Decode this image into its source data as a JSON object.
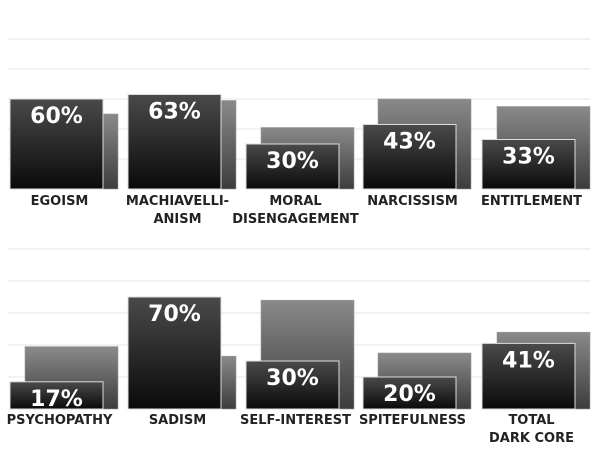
{
  "chart_data": [
    {
      "type": "bar",
      "categories": [
        [
          "EGOISM"
        ],
        [
          "MACHIAVELLI-",
          "ANISM"
        ],
        [
          "MORAL",
          "DISENGAGEMENT"
        ],
        [
          "NARCISSISM"
        ],
        [
          "ENTITLEMENT"
        ]
      ],
      "series": [
        {
          "values": [
            60,
            63,
            30,
            43,
            33
          ],
          "labels": [
            "60%",
            "63%",
            "30%",
            "43%",
            "33%"
          ],
          "color": "#1c1c1c"
        },
        {
          "values": [
            50,
            59,
            41,
            60,
            55
          ],
          "color": "#6e6e6e"
        }
      ],
      "ylim": [
        0,
        100
      ],
      "grid": true
    },
    {
      "type": "bar",
      "categories": [
        [
          "PSYCHOPATHY"
        ],
        [
          "SADISM"
        ],
        [
          "SELF-INTEREST"
        ],
        [
          "SPITEFULNESS"
        ],
        [
          "TOTAL",
          "DARK CORE"
        ]
      ],
      "series": [
        {
          "values": [
            17,
            70,
            30,
            20,
            41
          ],
          "labels": [
            "17%",
            "70%",
            "30%",
            "20%",
            "41%"
          ],
          "color": "#1c1c1c"
        },
        {
          "values": [
            39,
            33,
            68,
            35,
            48
          ],
          "color": "#6e6e6e"
        }
      ],
      "ylim": [
        0,
        100
      ],
      "grid": true
    }
  ]
}
